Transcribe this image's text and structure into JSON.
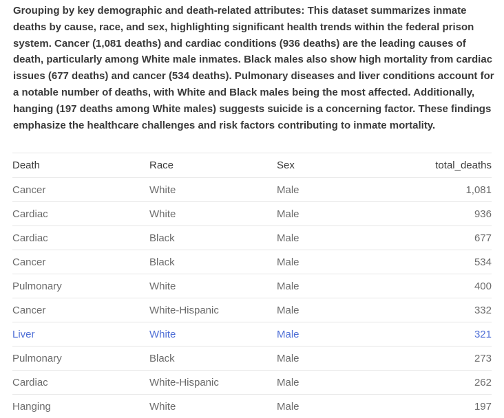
{
  "summary": "Grouping by key demographic and death-related attributes: This dataset summarizes inmate deaths by cause, race, and sex, highlighting significant health trends within the federal prison system. Cancer (1,081 deaths) and cardiac conditions (936 deaths) are the leading causes of death, particularly among White male inmates. Black males also show high mortality from cardiac issues (677 deaths) and cancer (534 deaths). Pulmonary diseases and liver conditions account for a notable number of deaths, with White and Black males being the most affected. Additionally, hanging (197 deaths among White males) suggests suicide is a concerning factor. These findings emphasize the healthcare challenges and risk factors contributing to inmate mortality.",
  "table": {
    "headers": {
      "death": "Death",
      "race": "Race",
      "sex": "Sex",
      "total_deaths": "total_deaths"
    },
    "rows": [
      {
        "death": "Cancer",
        "race": "White",
        "sex": "Male",
        "total_deaths": "1,081"
      },
      {
        "death": "Cardiac",
        "race": "White",
        "sex": "Male",
        "total_deaths": "936"
      },
      {
        "death": "Cardiac",
        "race": "Black",
        "sex": "Male",
        "total_deaths": "677"
      },
      {
        "death": "Cancer",
        "race": "Black",
        "sex": "Male",
        "total_deaths": "534"
      },
      {
        "death": "Pulmonary",
        "race": "White",
        "sex": "Male",
        "total_deaths": "400"
      },
      {
        "death": "Cancer",
        "race": "White-Hispanic",
        "sex": "Male",
        "total_deaths": "332"
      },
      {
        "death": "Liver",
        "race": "White",
        "sex": "Male",
        "total_deaths": "321"
      },
      {
        "death": "Pulmonary",
        "race": "Black",
        "sex": "Male",
        "total_deaths": "273"
      },
      {
        "death": "Cardiac",
        "race": "White-Hispanic",
        "sex": "Male",
        "total_deaths": "262"
      },
      {
        "death": "Hanging",
        "race": "White",
        "sex": "Male",
        "total_deaths": "197"
      }
    ]
  },
  "colors": {
    "text": "#3a3a3a",
    "muted_text": "#6b6b6b",
    "highlight_row_text": "#4f6fd6",
    "divider": "#e6e6e6"
  }
}
